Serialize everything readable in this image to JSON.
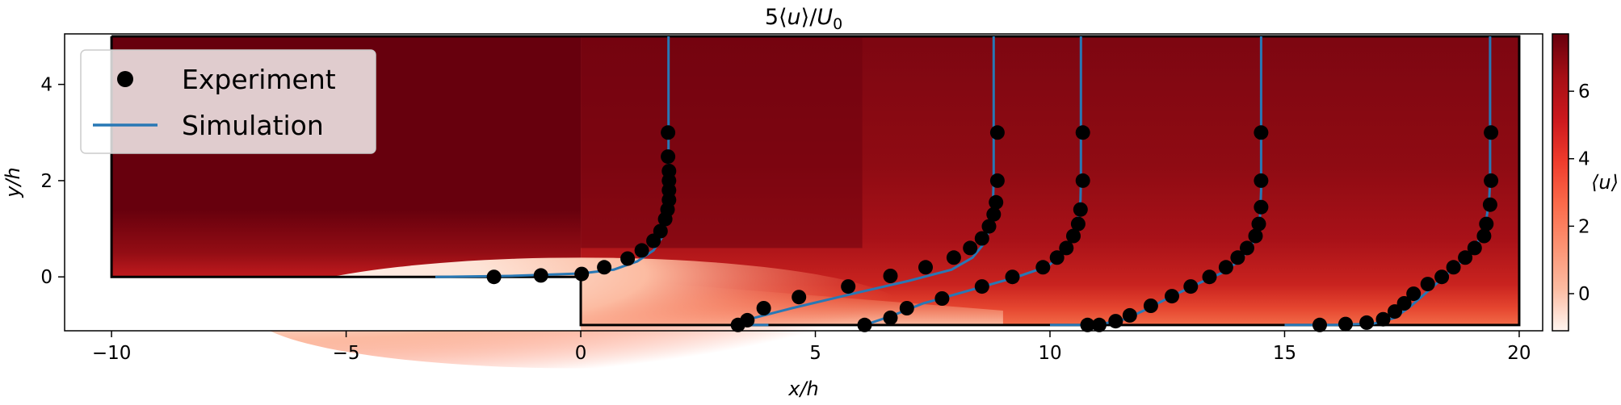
{
  "chart_data": {
    "type": "line",
    "title": "5⟨u⟩/U₀",
    "title_parts": {
      "prefix": "5⟨",
      "u": "u",
      "mid": "⟩/",
      "U": "U",
      "sub": "0"
    },
    "xlabel": "x/h",
    "ylabel": "y/h",
    "xlim": [
      -11.0,
      20.5
    ],
    "ylim": [
      -1.12,
      5.05
    ],
    "x_ticks": [
      -10,
      -5,
      0,
      5,
      10,
      15,
      20
    ],
    "y_ticks": [
      0,
      2,
      4
    ],
    "grid": false,
    "legend": {
      "placement": "top-left",
      "entries": [
        {
          "label": "Experiment",
          "marker": "dot",
          "color": "#000000"
        },
        {
          "label": "Simulation",
          "marker": "line",
          "color": "#2878b5"
        }
      ]
    },
    "colorbar": {
      "label": "⟨u⟩",
      "ticks": [
        0,
        2,
        4,
        6
      ],
      "range": [
        -1.1,
        7.7
      ],
      "colormap": [
        "#fff5f0",
        "#fcbba1",
        "#fc9272",
        "#fb6a4a",
        "#ef3b2c",
        "#cb181d",
        "#a50f15",
        "#67000d"
      ]
    },
    "geometry": {
      "step_outline": [
        [
          -10,
          5
        ],
        [
          -10,
          0
        ],
        [
          0,
          0
        ],
        [
          0,
          -1
        ],
        [
          20,
          -1
        ],
        [
          20,
          5
        ],
        [
          -10,
          5
        ]
      ]
    },
    "series": [
      {
        "name": "Experiment",
        "kind": "points",
        "profiles": [
          [
            [
              -1.85,
              0.0
            ],
            [
              -0.85,
              0.03
            ],
            [
              0.02,
              0.06
            ],
            [
              0.5,
              0.2
            ],
            [
              1.0,
              0.38
            ],
            [
              1.3,
              0.55
            ],
            [
              1.55,
              0.75
            ],
            [
              1.7,
              0.95
            ],
            [
              1.8,
              1.2
            ],
            [
              1.85,
              1.4
            ],
            [
              1.88,
              1.6
            ],
            [
              1.88,
              1.8
            ],
            [
              1.88,
              2.0
            ],
            [
              1.88,
              2.2
            ],
            [
              1.86,
              2.5
            ],
            [
              1.86,
              3.0
            ]
          ],
          [
            [
              3.35,
              -1.0
            ],
            [
              3.55,
              -0.9
            ],
            [
              3.9,
              -0.65
            ],
            [
              4.65,
              -0.42
            ],
            [
              5.7,
              -0.2
            ],
            [
              6.6,
              0.02
            ],
            [
              7.35,
              0.2
            ],
            [
              7.95,
              0.4
            ],
            [
              8.3,
              0.6
            ],
            [
              8.55,
              0.8
            ],
            [
              8.7,
              1.05
            ],
            [
              8.8,
              1.3
            ],
            [
              8.85,
              1.55
            ],
            [
              8.88,
              2.0
            ],
            [
              8.88,
              3.0
            ]
          ],
          [
            [
              6.05,
              -1.0
            ],
            [
              6.6,
              -0.85
            ],
            [
              6.95,
              -0.65
            ],
            [
              7.7,
              -0.45
            ],
            [
              8.55,
              -0.2
            ],
            [
              9.2,
              0.0
            ],
            [
              9.85,
              0.2
            ],
            [
              10.15,
              0.4
            ],
            [
              10.35,
              0.6
            ],
            [
              10.5,
              0.85
            ],
            [
              10.6,
              1.1
            ],
            [
              10.65,
              1.4
            ],
            [
              10.7,
              2.0
            ],
            [
              10.7,
              3.0
            ]
          ],
          [
            [
              10.8,
              -1.0
            ],
            [
              11.05,
              -1.0
            ],
            [
              11.4,
              -0.92
            ],
            [
              11.7,
              -0.8
            ],
            [
              12.15,
              -0.6
            ],
            [
              12.6,
              -0.4
            ],
            [
              13.0,
              -0.2
            ],
            [
              13.4,
              0.0
            ],
            [
              13.75,
              0.2
            ],
            [
              14.0,
              0.4
            ],
            [
              14.2,
              0.6
            ],
            [
              14.38,
              0.85
            ],
            [
              14.45,
              1.1
            ],
            [
              14.5,
              1.45
            ],
            [
              14.5,
              2.0
            ],
            [
              14.5,
              3.0
            ]
          ],
          [
            [
              15.75,
              -1.0
            ],
            [
              16.3,
              -0.98
            ],
            [
              16.75,
              -0.95
            ],
            [
              17.1,
              -0.88
            ],
            [
              17.35,
              -0.72
            ],
            [
              17.55,
              -0.55
            ],
            [
              17.75,
              -0.35
            ],
            [
              18.05,
              -0.15
            ],
            [
              18.35,
              0.0
            ],
            [
              18.6,
              0.2
            ],
            [
              18.85,
              0.4
            ],
            [
              19.05,
              0.6
            ],
            [
              19.25,
              0.85
            ],
            [
              19.3,
              1.1
            ],
            [
              19.38,
              1.5
            ],
            [
              19.4,
              2.0
            ],
            [
              19.4,
              3.0
            ]
          ]
        ]
      },
      {
        "name": "Simulation",
        "kind": "lines",
        "profiles": [
          [
            [
              -3.1,
              0.0
            ],
            [
              -1.5,
              0.02
            ],
            [
              0.0,
              0.07
            ],
            [
              0.7,
              0.15
            ],
            [
              1.2,
              0.32
            ],
            [
              1.55,
              0.55
            ],
            [
              1.75,
              0.85
            ],
            [
              1.83,
              1.2
            ],
            [
              1.86,
              1.6
            ],
            [
              1.87,
              2.2
            ],
            [
              1.87,
              3.0
            ],
            [
              1.87,
              5.0
            ]
          ],
          [
            [
              4.0,
              -1.0
            ],
            [
              3.55,
              -1.0
            ],
            [
              3.35,
              -0.95
            ],
            [
              3.7,
              -0.85
            ],
            [
              4.5,
              -0.65
            ],
            [
              5.8,
              -0.35
            ],
            [
              7.0,
              -0.08
            ],
            [
              7.9,
              0.15
            ],
            [
              8.35,
              0.4
            ],
            [
              8.6,
              0.7
            ],
            [
              8.72,
              1.0
            ],
            [
              8.78,
              1.4
            ],
            [
              8.8,
              2.0
            ],
            [
              8.8,
              3.0
            ],
            [
              8.8,
              5.0
            ]
          ],
          [
            [
              6.05,
              -1.0
            ],
            [
              6.6,
              -0.82
            ],
            [
              7.3,
              -0.55
            ],
            [
              8.4,
              -0.25
            ],
            [
              9.3,
              0.0
            ],
            [
              9.95,
              0.22
            ],
            [
              10.3,
              0.5
            ],
            [
              10.5,
              0.85
            ],
            [
              10.6,
              1.2
            ],
            [
              10.65,
              1.6
            ],
            [
              10.66,
              2.0
            ],
            [
              10.66,
              3.0
            ],
            [
              10.66,
              5.0
            ]
          ],
          [
            [
              10.0,
              -1.0
            ],
            [
              11.0,
              -1.0
            ],
            [
              11.6,
              -0.88
            ],
            [
              12.0,
              -0.7
            ],
            [
              12.6,
              -0.4
            ],
            [
              13.2,
              -0.12
            ],
            [
              13.7,
              0.1
            ],
            [
              14.05,
              0.35
            ],
            [
              14.3,
              0.65
            ],
            [
              14.42,
              0.95
            ],
            [
              14.48,
              1.3
            ],
            [
              14.5,
              1.8
            ],
            [
              14.5,
              3.0
            ],
            [
              14.5,
              5.0
            ]
          ],
          [
            [
              15.0,
              -1.0
            ],
            [
              16.0,
              -1.0
            ],
            [
              16.9,
              -0.97
            ],
            [
              17.35,
              -0.85
            ],
            [
              17.7,
              -0.6
            ],
            [
              18.05,
              -0.3
            ],
            [
              18.4,
              0.0
            ],
            [
              18.75,
              0.3
            ],
            [
              19.0,
              0.55
            ],
            [
              19.2,
              0.85
            ],
            [
              19.3,
              1.2
            ],
            [
              19.36,
              1.6
            ],
            [
              19.38,
              2.0
            ],
            [
              19.38,
              3.0
            ],
            [
              19.38,
              5.0
            ]
          ]
        ]
      }
    ]
  }
}
